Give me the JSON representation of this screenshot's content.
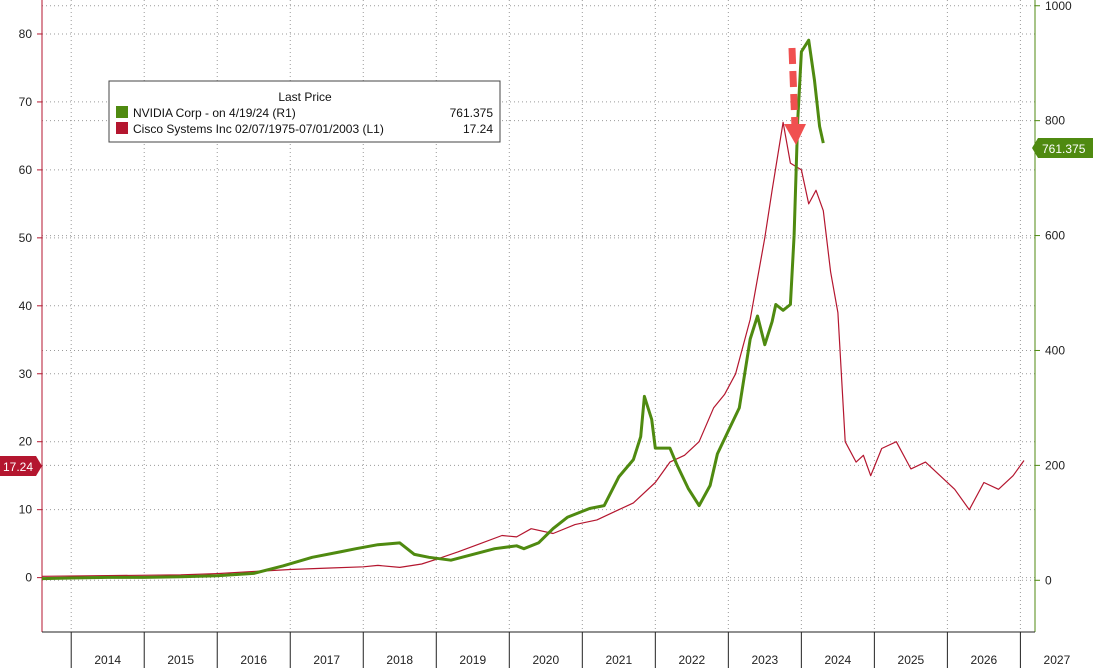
{
  "chart_data": {
    "type": "line",
    "title": "",
    "grid": true,
    "legend_position": "top-left",
    "colors": {
      "nvidia": "#4f8a10",
      "cisco": "#b4162f",
      "arrow": "#f05050",
      "grid": "#9a9a9a"
    },
    "x_axis": {
      "range": [
        2013.6,
        2027.2
      ],
      "tick_labels": [
        "2014",
        "2015",
        "2016",
        "2017",
        "2018",
        "2019",
        "2020",
        "2021",
        "2022",
        "2023",
        "2024",
        "2025",
        "2026",
        "2027"
      ],
      "tick_values": [
        2014,
        2015,
        2016,
        2017,
        2018,
        2019,
        2020,
        2021,
        2022,
        2023,
        2024,
        2025,
        2026,
        2027
      ]
    },
    "y_left": {
      "range": [
        -8,
        85
      ],
      "tick_labels": [
        "0",
        "10",
        "20",
        "30",
        "40",
        "50",
        "60",
        "70",
        "80"
      ],
      "tick_values": [
        0,
        10,
        20,
        30,
        40,
        50,
        60,
        70,
        80
      ]
    },
    "y_right": {
      "range": [
        -90,
        1010
      ],
      "tick_labels": [
        "0",
        "200",
        "400",
        "600",
        "800",
        "1000"
      ],
      "tick_values": [
        0,
        200,
        400,
        600,
        800,
        1000
      ]
    },
    "legend": {
      "header": "Last Price",
      "entries": [
        {
          "label": "NVIDIA Corp -  on 4/19/24  (R1)",
          "value": "761.375"
        },
        {
          "label": "Cisco Systems Inc 02/07/1975-07/01/2003  (L1)",
          "value": "17.24"
        }
      ]
    },
    "tags": {
      "nvidia_last": "761.375",
      "cisco_last": "17.24"
    },
    "series": [
      {
        "name": "NVIDIA Corp",
        "axis": "right",
        "x": [
          2013.6,
          2014.0,
          2014.5,
          2015.0,
          2015.5,
          2016.0,
          2016.5,
          2016.9,
          2017.3,
          2017.7,
          2017.9,
          2018.2,
          2018.5,
          2018.7,
          2018.9,
          2019.2,
          2019.5,
          2019.8,
          2020.1,
          2020.2,
          2020.4,
          2020.6,
          2020.8,
          2021.1,
          2021.3,
          2021.5,
          2021.7,
          2021.8,
          2021.85,
          2021.95,
          2022.0,
          2022.2,
          2022.3,
          2022.45,
          2022.6,
          2022.75,
          2022.85,
          2023.0,
          2023.15,
          2023.3,
          2023.4,
          2023.5,
          2023.6,
          2023.65,
          2023.75,
          2023.85,
          2023.9,
          2023.95,
          2024.0,
          2024.1,
          2024.18,
          2024.25,
          2024.3
        ],
        "y": [
          3,
          4,
          5,
          5,
          6,
          8,
          12,
          25,
          40,
          50,
          55,
          62,
          65,
          45,
          40,
          35,
          45,
          55,
          60,
          55,
          65,
          90,
          110,
          125,
          130,
          180,
          210,
          250,
          320,
          280,
          230,
          230,
          200,
          160,
          130,
          165,
          220,
          260,
          300,
          420,
          460,
          410,
          450,
          480,
          470,
          480,
          600,
          800,
          920,
          940,
          870,
          790,
          761
        ]
      },
      {
        "name": "Cisco Systems Inc",
        "axis": "left",
        "x": [
          2013.6,
          2014.5,
          2015.5,
          2016.0,
          2016.5,
          2017.0,
          2017.5,
          2018.0,
          2018.2,
          2018.5,
          2018.8,
          2019.0,
          2019.3,
          2019.6,
          2019.9,
          2020.1,
          2020.3,
          2020.6,
          2020.9,
          2021.2,
          2021.5,
          2021.7,
          2022.0,
          2022.2,
          2022.4,
          2022.6,
          2022.8,
          2022.95,
          2023.1,
          2023.3,
          2023.5,
          2023.6,
          2023.75,
          2023.85,
          2024.0,
          2024.1,
          2024.2,
          2024.3,
          2024.4,
          2024.5,
          2024.6,
          2024.75,
          2024.85,
          2024.95,
          2025.1,
          2025.3,
          2025.5,
          2025.7,
          2025.9,
          2026.1,
          2026.3,
          2026.5,
          2026.7,
          2026.9,
          2027.05
        ],
        "y": [
          0.2,
          0.3,
          0.4,
          0.6,
          0.9,
          1.2,
          1.4,
          1.6,
          1.8,
          1.5,
          2.0,
          2.7,
          3.8,
          5.0,
          6.2,
          6.0,
          7.2,
          6.5,
          7.8,
          8.5,
          10.0,
          11.0,
          14.0,
          17.0,
          18.0,
          20.0,
          25.0,
          27.0,
          30.0,
          38.0,
          50.0,
          57.0,
          67.0,
          61.0,
          60.0,
          55.0,
          57.0,
          54.0,
          45.0,
          39.0,
          20.0,
          17.0,
          18.0,
          15.0,
          19.0,
          20.0,
          16.0,
          17.0,
          15.0,
          13.0,
          10.0,
          14.0,
          13.0,
          15.0,
          17.24
        ]
      }
    ]
  }
}
